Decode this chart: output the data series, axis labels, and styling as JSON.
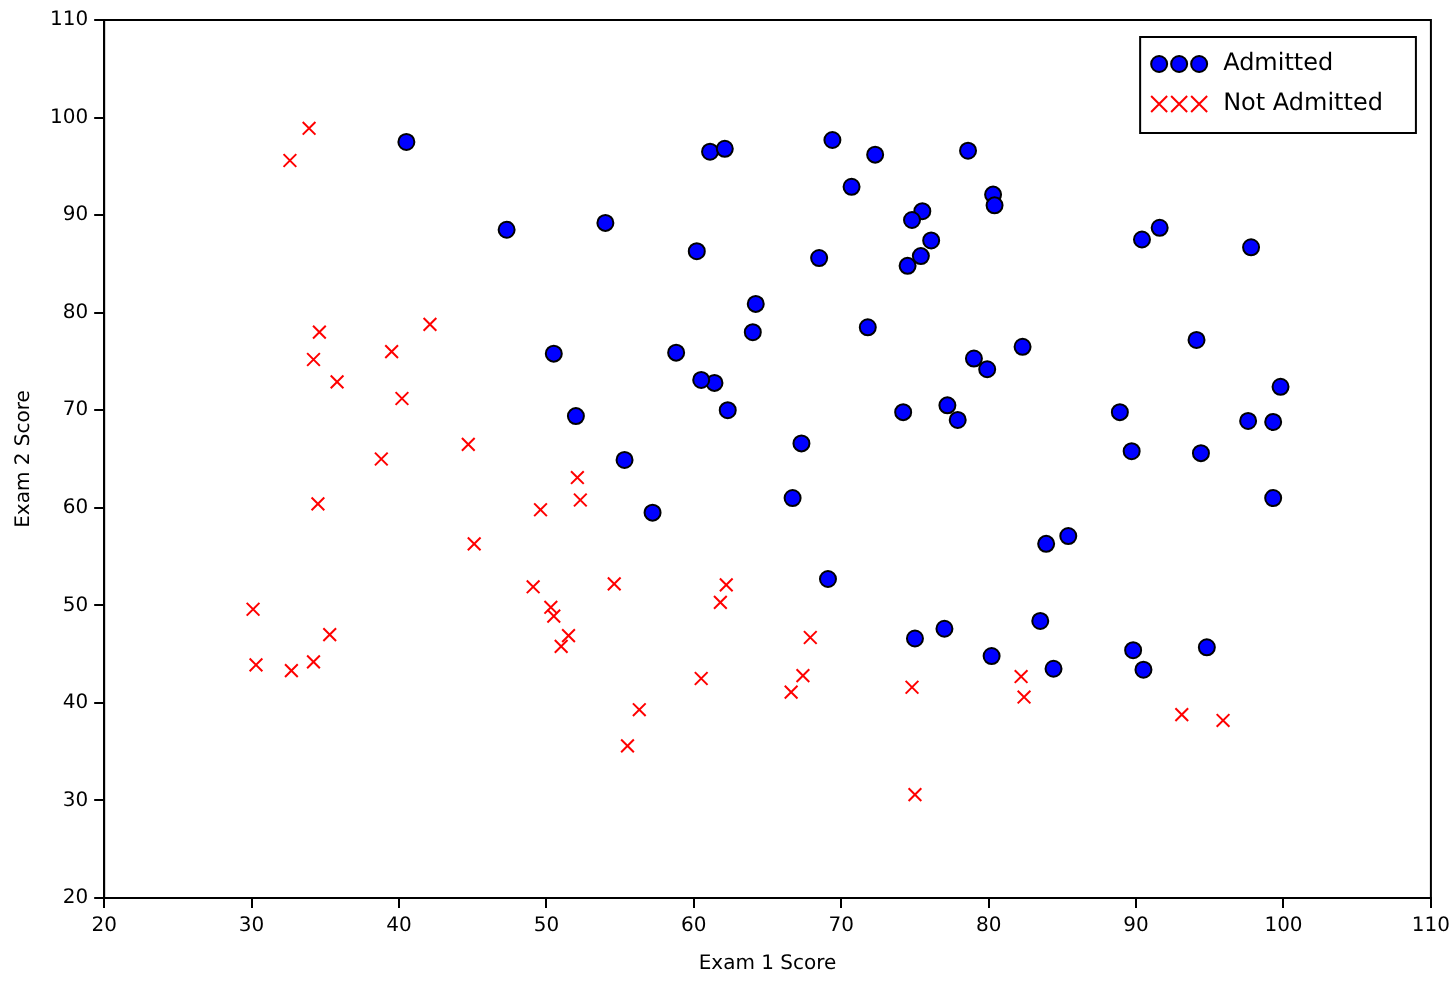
{
  "chart_data": {
    "type": "scatter",
    "xlabel": "Exam 1 Score",
    "ylabel": "Exam 2 Score",
    "xlim": [
      20,
      110
    ],
    "xticks": [
      20,
      30,
      40,
      50,
      60,
      70,
      80,
      90,
      100,
      110
    ],
    "ylim": [
      20,
      110
    ],
    "yticks": [
      20,
      30,
      40,
      50,
      60,
      70,
      80,
      90,
      100,
      110
    ],
    "grid": false,
    "legend": "top right",
    "series": [
      {
        "name": "Admitted",
        "color": "#0000ff",
        "marker": "circle",
        "x": [
          60.2,
          79.0,
          61.1,
          75.0,
          76.1,
          84.4,
          82.3,
          69.4,
          54.0,
          69.1,
          70.7,
          77.0,
          89.7,
          77.9,
          62.3,
          80.2,
          61.4,
          85.4,
          52.0,
          64.2,
          83.9,
          94.4,
          77.2,
          97.8,
          62.1,
          91.6,
          79.9,
          99.3,
          90.5,
          97.6,
          74.2,
          71.8,
          75.4,
          40.5,
          80.3,
          66.7,
          64.0,
          72.3,
          60.5,
          58.8,
          99.8,
          47.3,
          50.5,
          88.9,
          94.8,
          67.3,
          57.2,
          80.4,
          68.5,
          75.5,
          78.6,
          94.1,
          90.4,
          74.5,
          89.8,
          83.5,
          99.3,
          55.3,
          74.8
        ],
        "values": [
          86.3,
          75.3,
          96.5,
          46.6,
          87.4,
          43.5,
          76.5,
          97.7,
          89.2,
          52.7,
          92.9,
          47.6,
          65.8,
          69.0,
          70.0,
          44.8,
          72.8,
          57.1,
          69.4,
          80.9,
          56.3,
          65.6,
          70.5,
          86.7,
          96.8,
          88.7,
          74.2,
          61.0,
          43.4,
          68.9,
          69.8,
          78.5,
          85.8,
          97.5,
          92.1,
          61.0,
          78.0,
          96.2,
          73.1,
          75.9,
          72.4,
          88.5,
          75.8,
          69.8,
          45.7,
          66.6,
          59.5,
          91.0,
          85.6,
          90.4,
          96.6,
          77.2,
          87.5,
          84.8,
          45.4,
          48.4,
          68.8,
          64.9,
          89.5
        ]
      },
      {
        "name": "Not Admitted",
        "color": "#ff0000",
        "marker": "cross",
        "x": [
          34.6,
          30.3,
          35.8,
          45.1,
          95.9,
          75.0,
          39.5,
          67.9,
          67.4,
          50.5,
          34.2,
          93.1,
          61.8,
          38.8,
          52.1,
          40.2,
          54.6,
          33.9,
          74.8,
          34.2,
          51.5,
          82.4,
          51.0,
          62.2,
          34.5,
          50.3,
          49.6,
          32.6,
          35.3,
          56.3,
          30.1,
          44.7,
          66.6,
          49.1,
          32.7,
          60.5,
          82.2,
          42.1,
          52.3,
          55.5
        ],
        "values": [
          78.0,
          43.9,
          72.9,
          56.3,
          38.2,
          30.6,
          76.0,
          46.7,
          42.8,
          48.9,
          44.2,
          38.8,
          50.3,
          65.0,
          63.1,
          71.2,
          52.2,
          98.9,
          41.6,
          75.2,
          46.9,
          40.6,
          45.8,
          52.1,
          60.4,
          49.8,
          59.8,
          95.6,
          47.0,
          39.3,
          49.6,
          66.5,
          41.1,
          51.9,
          43.3,
          42.5,
          42.7,
          78.8,
          60.8,
          35.6
        ]
      }
    ]
  }
}
